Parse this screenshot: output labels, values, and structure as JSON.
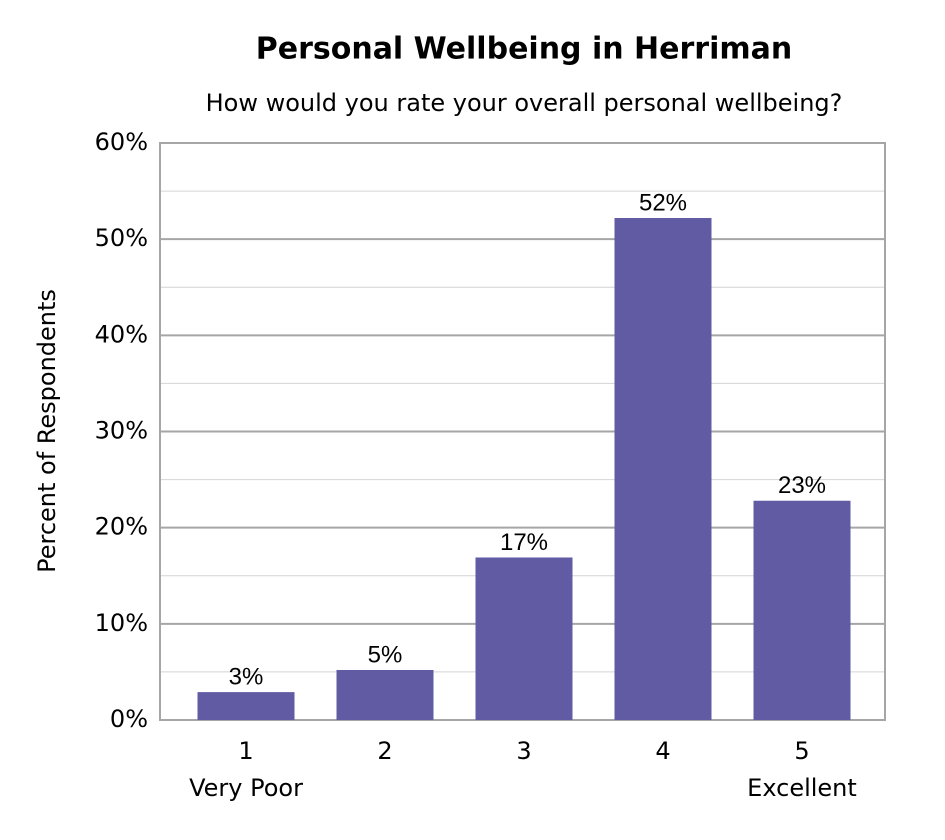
{
  "chart_data": {
    "type": "bar",
    "title": "Personal Wellbeing in Herriman",
    "subtitle": "How would you rate your overall personal wellbeing?",
    "y_label": "Percent of Respondents",
    "categories": [
      "1",
      "2",
      "3",
      "4",
      "5"
    ],
    "category_sublabels": [
      "Very Poor",
      null,
      null,
      null,
      "Excellent"
    ],
    "values": [
      2.9,
      5.2,
      16.9,
      52.2,
      22.8
    ],
    "value_labels": [
      "3%",
      "5%",
      "17%",
      "52%",
      "23%"
    ],
    "color": "#615ba4",
    "ylim": [
      0,
      60
    ],
    "yticks": [
      {
        "value": 0,
        "label": "0%"
      },
      {
        "value": 10,
        "label": "10%"
      },
      {
        "value": 20,
        "label": "20%"
      },
      {
        "value": 30,
        "label": "30%"
      },
      {
        "value": 40,
        "label": "40%"
      },
      {
        "value": 50,
        "label": "50%"
      },
      {
        "value": 60,
        "label": "60%"
      }
    ],
    "minor_yticks": [
      5,
      15,
      25,
      35,
      45,
      55
    ],
    "grid": true
  }
}
